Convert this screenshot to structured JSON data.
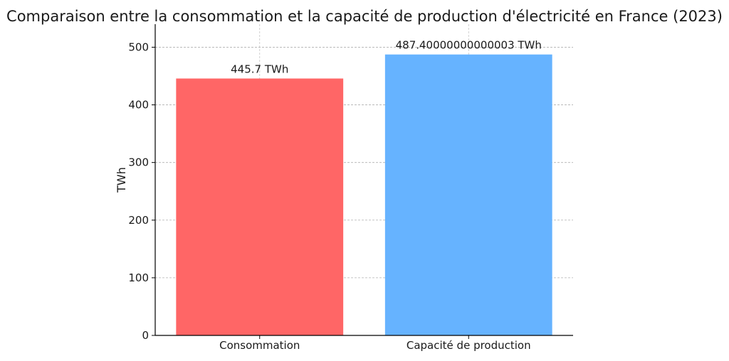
{
  "chart_data": {
    "type": "bar",
    "title": "Comparaison entre la consommation et la capacité de production d'électricité en France (2023)",
    "xlabel": "",
    "ylabel": "TWh",
    "categories": [
      "Consommation",
      "Capacité de production"
    ],
    "values": [
      445.7,
      487.4
    ],
    "data_labels": [
      "445.7 TWh",
      "487.40000000000003 TWh"
    ],
    "colors": [
      "#ff6666",
      "#66b3ff"
    ],
    "ylim": [
      0,
      540
    ],
    "yticks": [
      0,
      100,
      200,
      300,
      400,
      500
    ],
    "grid": true
  }
}
